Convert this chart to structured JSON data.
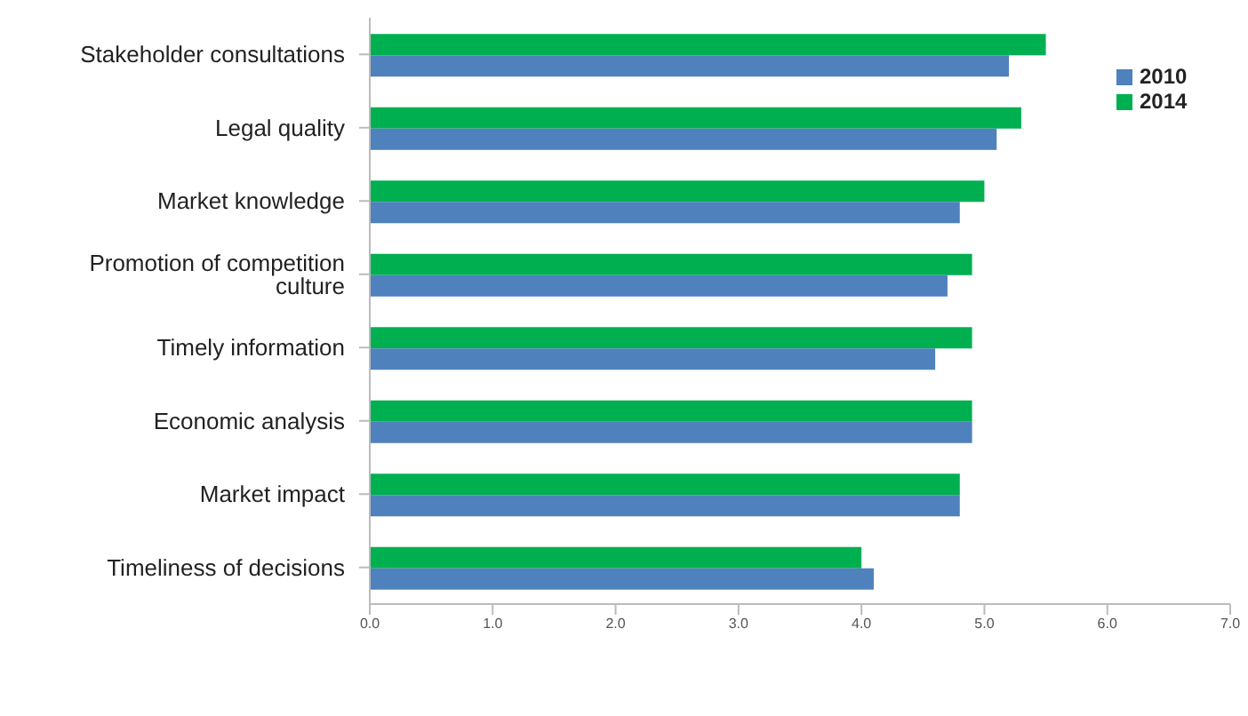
{
  "chart_data": {
    "type": "bar",
    "orientation": "horizontal",
    "categories": [
      "Stakeholder consultations",
      "Legal quality",
      "Market knowledge",
      "Promotion of competition culture",
      "Timely information",
      "Economic analysis",
      "Market impact",
      "Timeliness of decisions"
    ],
    "series": [
      {
        "name": "2014",
        "color": "#00b050",
        "values": [
          5.5,
          5.3,
          5.0,
          4.9,
          4.9,
          4.9,
          4.8,
          4.0
        ]
      },
      {
        "name": "2010",
        "color": "#4f81bd",
        "values": [
          5.2,
          5.1,
          4.8,
          4.7,
          4.6,
          4.9,
          4.8,
          4.1
        ]
      }
    ],
    "xlim": [
      0,
      7
    ],
    "xticks": [
      {
        "value": 0,
        "label": "0.0"
      },
      {
        "value": 1,
        "label": "1.0"
      },
      {
        "value": 2,
        "label": "2.0"
      },
      {
        "value": 3,
        "label": "3.0"
      },
      {
        "value": 4,
        "label": "4.0"
      },
      {
        "value": 5,
        "label": "5.0"
      },
      {
        "value": 6,
        "label": "6.0"
      },
      {
        "value": 7,
        "label": "7.0"
      }
    ],
    "grid": false,
    "legend": "top right"
  }
}
